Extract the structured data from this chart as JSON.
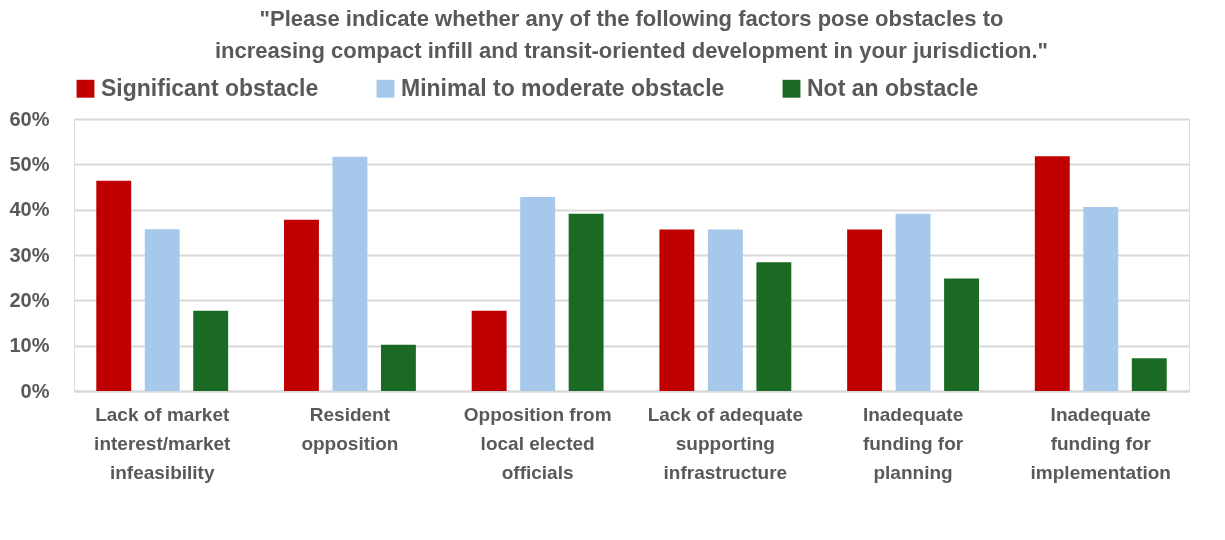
{
  "chart_data": {
    "type": "bar",
    "title": "\"Please indicate whether any of the following factors pose obstacles to\nincreasing compact infill and transit-oriented development in your jurisdiction.\"",
    "categories": [
      "Lack of market interest/market infeasibility",
      "Resident opposition",
      "Opposition from local elected officials",
      "Lack of adequate supporting infrastructure",
      "Inadequate funding for planning",
      "Inadequate funding for implementation"
    ],
    "series": [
      {
        "name": "Significant obstacle",
        "color": "#c00000",
        "values": [
          46.4,
          37.8,
          17.7,
          35.6,
          35.6,
          51.8
        ]
      },
      {
        "name": "Minimal to moderate obstacle",
        "color": "#a6c9eb",
        "values": [
          35.7,
          51.7,
          42.8,
          35.6,
          39.1,
          40.6
        ]
      },
      {
        "name": "Not an obstacle",
        "color": "#1b6a23",
        "values": [
          17.7,
          10.2,
          39.1,
          28.4,
          24.8,
          7.2
        ]
      }
    ],
    "ylim": [
      0,
      60
    ],
    "yticks": [
      {
        "value": 0,
        "label": "0%"
      },
      {
        "value": 10,
        "label": "10%"
      },
      {
        "value": 20,
        "label": "20%"
      },
      {
        "value": 30,
        "label": "30%"
      },
      {
        "value": 40,
        "label": "40%"
      },
      {
        "value": 50,
        "label": "50%"
      },
      {
        "value": 60,
        "label": "60%"
      }
    ],
    "grid": "y",
    "legend": "top"
  }
}
